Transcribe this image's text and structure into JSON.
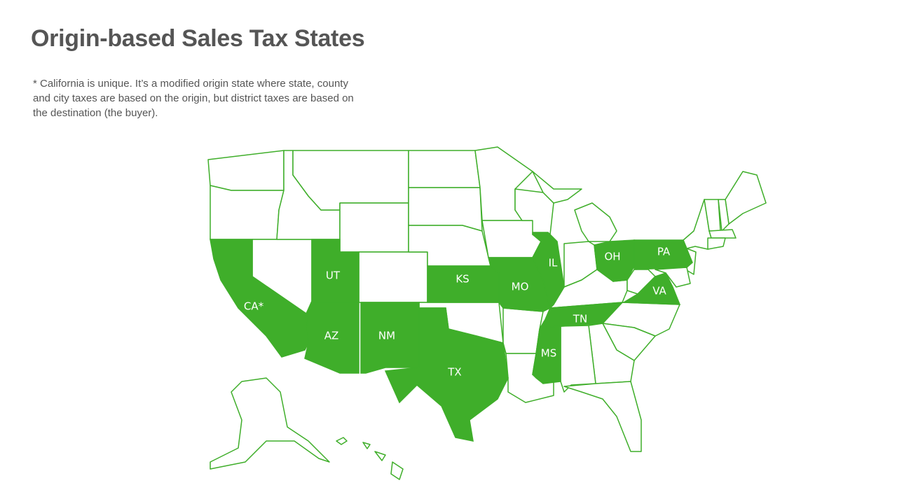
{
  "title": "Origin-based Sales Tax States",
  "note": [
    "* California is unique. It’s a modified origin state where state, county",
    "and city taxes are based on the origin, but district taxes are based on",
    "the destination (the buyer)."
  ],
  "highlighted_states": [
    {
      "label": "CA*"
    },
    {
      "label": "UT"
    },
    {
      "label": "AZ"
    },
    {
      "label": "NM"
    },
    {
      "label": "TX"
    },
    {
      "label": "KS"
    },
    {
      "label": "MO"
    },
    {
      "label": "IL"
    },
    {
      "label": "MS"
    },
    {
      "label": "TN"
    },
    {
      "label": "OH"
    },
    {
      "label": "PA"
    },
    {
      "label": "VA"
    }
  ]
}
